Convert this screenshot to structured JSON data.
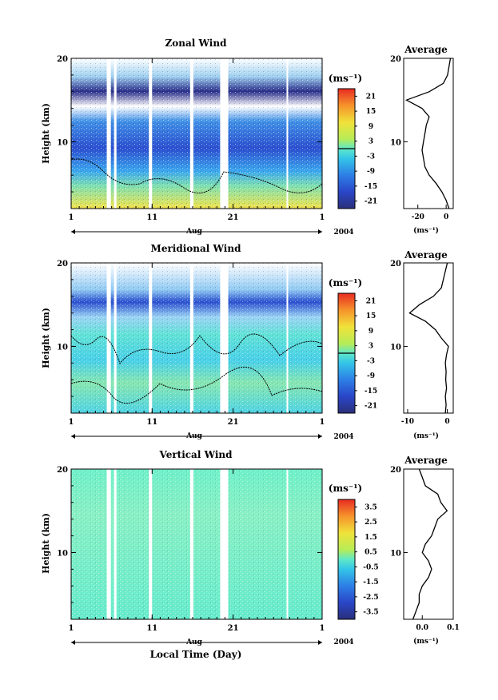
{
  "figure": {
    "bottom_label": "Local Time (Day)",
    "month_label": "Aug",
    "year_label": "2004"
  },
  "chart_data": [
    {
      "type": "heatmap",
      "title": "Zonal Wind",
      "ylabel": "Height (km)",
      "ylim": [
        2,
        20
      ],
      "yticks": [
        "10",
        "20"
      ],
      "xlim": [
        1,
        32
      ],
      "xticks": [
        "1",
        "11",
        "21",
        "1"
      ],
      "colorbar": {
        "unit": "(ms⁻¹)",
        "range": [
          -24,
          24
        ],
        "ticks": [
          "21",
          "15",
          "9",
          "3",
          "-3",
          "-9",
          "-15",
          "-21"
        ]
      },
      "profile": {
        "title": "Average",
        "xlabel": "(ms⁻¹)",
        "xticks": [
          "-20",
          "0"
        ],
        "xlim": [
          -30,
          5
        ],
        "heights": [
          2,
          3,
          4,
          5,
          6,
          7,
          8,
          9,
          10,
          11,
          12,
          13,
          14,
          15,
          16,
          17,
          18,
          19,
          20
        ],
        "values": [
          2,
          0,
          -3,
          -7,
          -12,
          -15,
          -16,
          -17,
          -16,
          -15,
          -14,
          -12,
          -17,
          -28,
          -12,
          -2,
          1,
          2,
          3
        ]
      }
    },
    {
      "type": "heatmap",
      "title": "Meridional Wind",
      "ylabel": "Height (km)",
      "ylim": [
        2,
        20
      ],
      "yticks": [
        "10",
        "20"
      ],
      "xlim": [
        1,
        32
      ],
      "xticks": [
        "1",
        "11",
        "21",
        "1"
      ],
      "colorbar": {
        "unit": "(ms⁻¹)",
        "range": [
          -24,
          24
        ],
        "ticks": [
          "21",
          "15",
          "9",
          "3",
          "-3",
          "-9",
          "-15",
          "-21"
        ]
      },
      "profile": {
        "title": "Average",
        "xlabel": "(ms⁻¹)",
        "xticks": [
          "-10",
          "0"
        ],
        "xlim": [
          -11,
          1.5
        ],
        "heights": [
          2,
          3,
          4,
          5,
          6,
          7,
          8,
          9,
          10,
          11,
          12,
          13,
          14,
          15,
          16,
          17,
          18,
          19,
          20
        ],
        "values": [
          -0.5,
          -0.3,
          -0.5,
          -0.2,
          -0.4,
          -0.3,
          -0.5,
          -0.2,
          0.3,
          -1.5,
          -3,
          -5.5,
          -9.5,
          -7,
          -3.5,
          -1.5,
          -1,
          -0.5,
          0
        ]
      }
    },
    {
      "type": "heatmap",
      "title": "Vertical Wind",
      "ylabel": "Height (km)",
      "ylim": [
        2,
        20
      ],
      "yticks": [
        "10",
        "20"
      ],
      "xlim": [
        1,
        32
      ],
      "xticks": [
        "1",
        "11",
        "21",
        "1"
      ],
      "colorbar": {
        "unit": "(ms⁻¹)",
        "range": [
          -4,
          4
        ],
        "ticks": [
          "3.5",
          "2.5",
          "1.5",
          "0.5",
          "-0.5",
          "-1.5",
          "-2.5",
          "-3.5"
        ]
      },
      "profile": {
        "title": "Average",
        "xlabel": "(ms⁻¹)",
        "xticks": [
          "0.0",
          "0.1"
        ],
        "xlim": [
          -0.06,
          0.1
        ],
        "heights": [
          2,
          3,
          4,
          5,
          6,
          7,
          8,
          9,
          10,
          11,
          12,
          13,
          14,
          15,
          16,
          17,
          18,
          19,
          20
        ],
        "values": [
          -0.03,
          -0.02,
          -0.01,
          -0.01,
          0.0,
          0.02,
          0.03,
          0.02,
          0.0,
          0.01,
          0.03,
          0.04,
          0.05,
          0.08,
          0.06,
          0.05,
          0.01,
          0.0,
          -0.01
        ]
      }
    }
  ]
}
